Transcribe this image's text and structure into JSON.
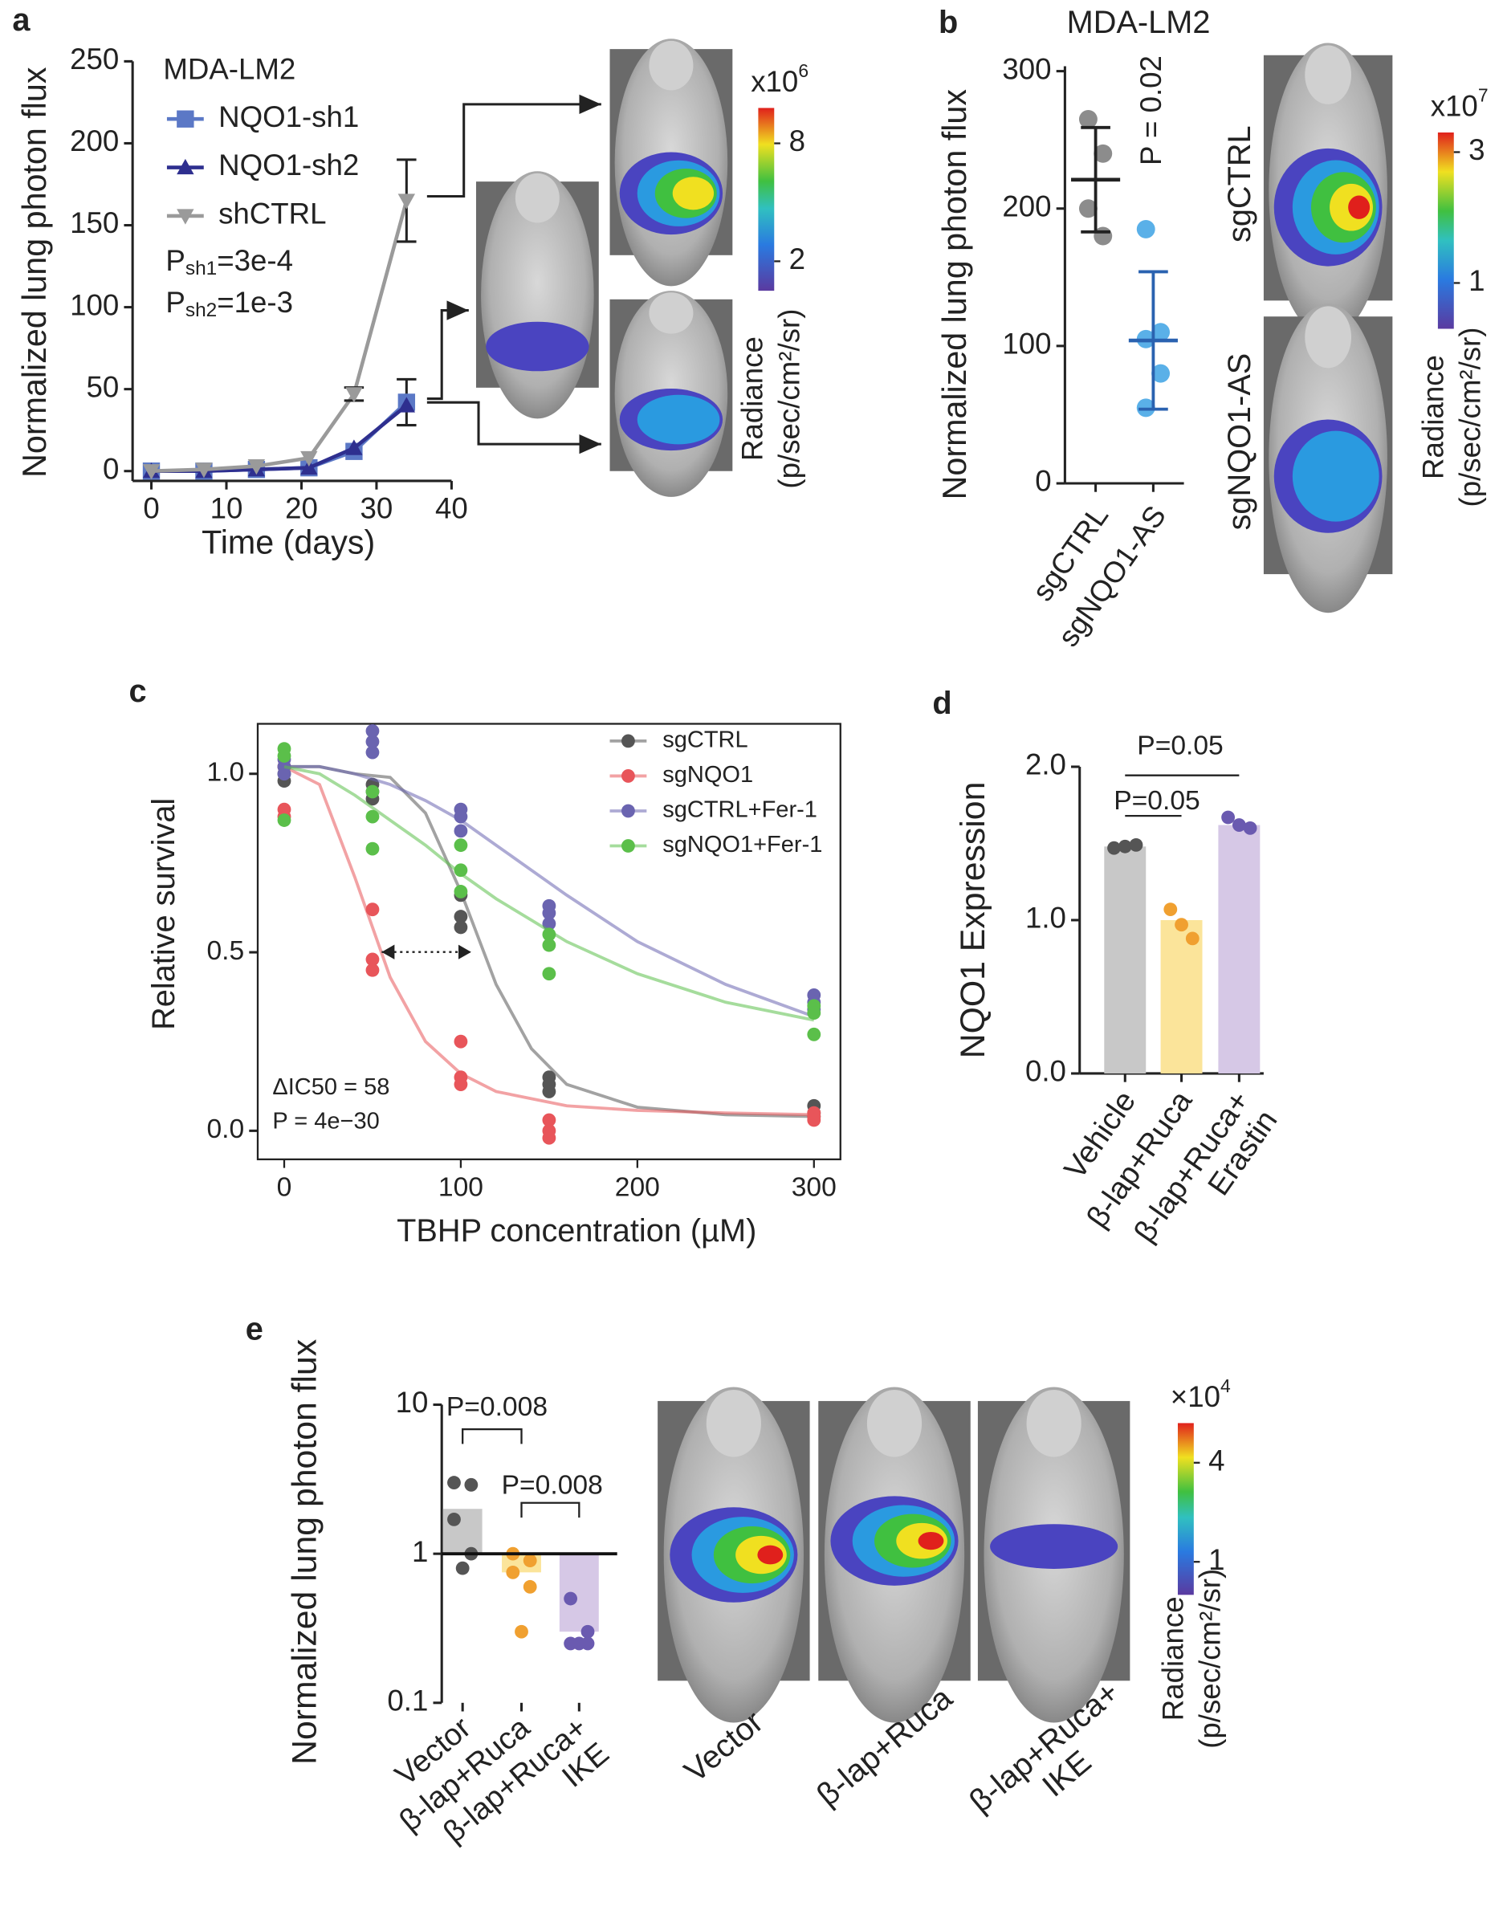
{
  "chart_data": [
    {
      "panel": "a",
      "type": "line",
      "title": "MDA-LM2",
      "x": [
        0,
        7,
        14,
        21,
        27,
        34
      ],
      "series": [
        {
          "name": "NQO1-sh1",
          "color": "#5b78c6",
          "marker": "square",
          "values": [
            0,
            0,
            1,
            2,
            12,
            42
          ],
          "errors": [
            null,
            null,
            null,
            null,
            null,
            14
          ]
        },
        {
          "name": "NQO1-sh2",
          "color": "#2e2f8f",
          "marker": "triangle-up",
          "values": [
            0,
            0,
            1,
            2,
            14,
            40
          ]
        },
        {
          "name": "shCTRL",
          "color": "#9a9a9a",
          "marker": "triangle-down",
          "values": [
            0,
            1,
            3,
            8,
            47,
            165
          ],
          "errors": [
            null,
            null,
            null,
            null,
            4,
            25
          ]
        }
      ],
      "annotations": [
        {
          "text": "P",
          "sub": "sh1",
          "rest": "=3e-4"
        },
        {
          "text": "P",
          "sub": "sh2",
          "rest": "=1e-3"
        }
      ],
      "xlabel": "Time (days)",
      "ylabel": "Normalized lung photon flux",
      "xlim": [
        -2.5,
        40
      ],
      "xticks": [
        0,
        10,
        20,
        30,
        40
      ],
      "ylim": [
        -6,
        250
      ],
      "yticks": [
        0,
        50,
        100,
        150,
        200,
        250
      ],
      "colorbar": {
        "title": {
          "base": "x10",
          "exp": "6"
        },
        "clim": [
          0.5,
          9.8
        ],
        "ticks": [
          2,
          8
        ],
        "label": [
          "Radiance",
          "(p/sec/cm²/sr)"
        ]
      }
    },
    {
      "panel": "b",
      "type": "dot",
      "title": "MDA-LM2",
      "categories": [
        "sgCTRL",
        "sgNQO1-AS"
      ],
      "points": [
        [
          265,
          240,
          200,
          180
        ],
        [
          185,
          110,
          105,
          80,
          55
        ]
      ],
      "colors": [
        "#8c8c8c",
        "#5ab0e8"
      ],
      "line_colors": [
        "#222222",
        "#2a62b0"
      ],
      "mean": [
        221,
        104
      ],
      "sd": [
        38,
        50
      ],
      "annotation": "P = 0.02",
      "ylabel": "Normalized lung photon flux",
      "ylim": [
        0,
        300
      ],
      "yticks": [
        0,
        100,
        200,
        300
      ],
      "images": [
        "sgCTRL",
        "sgNQO1-AS"
      ],
      "colorbar": {
        "title": {
          "base": "x10",
          "exp": "7"
        },
        "clim": [
          0.3,
          3.3
        ],
        "ticks": [
          1,
          3
        ],
        "label": [
          "Radiance",
          "(p/sec/cm²/sr)"
        ]
      }
    },
    {
      "panel": "c",
      "type": "scatter",
      "x": [
        0,
        0,
        0,
        50,
        50,
        50,
        100,
        100,
        100,
        150,
        150,
        150,
        300,
        300,
        300
      ],
      "curve_x": [
        0,
        20,
        40,
        60,
        80,
        100,
        120,
        140,
        160,
        200,
        250,
        300
      ],
      "series": [
        {
          "name": "sgCTRL",
          "color": "#555555",
          "values": [
            1.02,
            1.0,
            0.98,
            0.97,
            0.95,
            0.93,
            0.66,
            0.6,
            0.57,
            0.15,
            0.13,
            0.11,
            0.07,
            0.05,
            0.04
          ],
          "curve": [
            1.02,
            1.02,
            1.0,
            0.99,
            0.89,
            0.67,
            0.41,
            0.23,
            0.13,
            0.066,
            0.045,
            0.04
          ]
        },
        {
          "name": "sgNQO1",
          "color": "#e8555a",
          "values": [
            0.9,
            0.88,
            1.02,
            0.62,
            0.48,
            0.45,
            0.25,
            0.15,
            0.13,
            0.03,
            0.0,
            -0.02,
            0.05,
            0.04,
            0.03
          ],
          "curve": [
            1.02,
            0.97,
            0.71,
            0.43,
            0.25,
            0.16,
            0.11,
            0.09,
            0.07,
            0.057,
            0.05,
            0.045
          ]
        },
        {
          "name": "sgCTRL+Fer-1",
          "color": "#6a64b0",
          "values": [
            1.04,
            1.02,
            1.0,
            1.12,
            1.09,
            1.06,
            0.9,
            0.88,
            0.84,
            0.63,
            0.61,
            0.58,
            0.38,
            0.36,
            0.34
          ],
          "curve": [
            1.02,
            1.02,
            1.0,
            0.97,
            0.925,
            0.87,
            0.8,
            0.73,
            0.66,
            0.53,
            0.41,
            0.32
          ]
        },
        {
          "name": "sgNQO1+Fer-1",
          "color": "#5bbf4a",
          "values": [
            1.07,
            1.05,
            0.87,
            0.95,
            0.88,
            0.79,
            0.8,
            0.73,
            0.67,
            0.55,
            0.52,
            0.44,
            0.35,
            0.33,
            0.27
          ],
          "curve": [
            1.02,
            1.0,
            0.94,
            0.87,
            0.8,
            0.72,
            0.65,
            0.59,
            0.53,
            0.44,
            0.36,
            0.31
          ]
        }
      ],
      "annotations": [
        "ΔIC50 = 58",
        "P = 4e−30"
      ],
      "xlabel": "TBHP concentration (µM)",
      "ylabel": "Relative survival",
      "xlim": [
        -15,
        315
      ],
      "xticks": [
        0,
        100,
        200,
        300
      ],
      "ylim": [
        -0.08,
        1.14
      ],
      "yticks": [
        {
          "value": 0,
          "label": "0.0"
        },
        {
          "value": 0.5,
          "label": "0.5"
        },
        {
          "value": 1,
          "label": "1.0"
        }
      ],
      "legend": "upper right"
    },
    {
      "panel": "d",
      "type": "bar",
      "categories": [
        "Vehicle",
        "β-lap+Ruca",
        "β-lap+Ruca+\nErastin"
      ],
      "values": [
        1.48,
        1.0,
        1.62
      ],
      "colors": [
        "#c8c8c8",
        "#fbe49a",
        "#d6c8e6"
      ],
      "points": [
        [
          1.47,
          1.48,
          1.49
        ],
        [
          1.07,
          0.97,
          0.88
        ],
        [
          1.67,
          1.62,
          1.6
        ]
      ],
      "point_colors": [
        "#555555",
        "#f0a030",
        "#6a5ab0"
      ],
      "p_values": [
        "P=0.05",
        "P=0.05"
      ],
      "ylabel": "NQO1 Expression",
      "ylim": [
        0,
        2
      ],
      "yticks": [
        {
          "value": 0,
          "label": "0.0"
        },
        {
          "value": 1,
          "label": "1.0"
        },
        {
          "value": 2,
          "label": "2.0"
        }
      ]
    },
    {
      "panel": "e",
      "type": "bar",
      "log": true,
      "baseline": 1,
      "categories": [
        "Vector",
        "β-lap+Ruca",
        "β-lap+Ruca+\nIKE"
      ],
      "values": [
        2.0,
        0.75,
        0.3
      ],
      "colors": [
        "#c8c8c8",
        "#fbe49a",
        "#d6c8e6"
      ],
      "points": [
        [
          3.0,
          2.9,
          1.7,
          1.0,
          0.8
        ],
        [
          1.0,
          0.9,
          0.75,
          0.6,
          0.3
        ],
        [
          0.5,
          0.3,
          0.25,
          0.25,
          0.25
        ]
      ],
      "point_colors": [
        "#555555",
        "#f0a030",
        "#6a5ab0"
      ],
      "p_values": [
        "P=0.008",
        "P=0.008"
      ],
      "ylabel": "Normalized lung photon flux",
      "ylim": [
        0.1,
        10
      ],
      "yticks": [
        0.1,
        1,
        10
      ],
      "images": [
        "Vector",
        "β-lap+Ruca",
        "β-lap+Ruca+\nIKE"
      ],
      "colorbar": {
        "title": {
          "base": "×10",
          "exp": "4"
        },
        "clim": [
          0,
          5.2
        ],
        "ticks": [
          1,
          4
        ],
        "label": [
          "Radiance",
          "(p/sec/cm²/sr)"
        ]
      }
    }
  ]
}
